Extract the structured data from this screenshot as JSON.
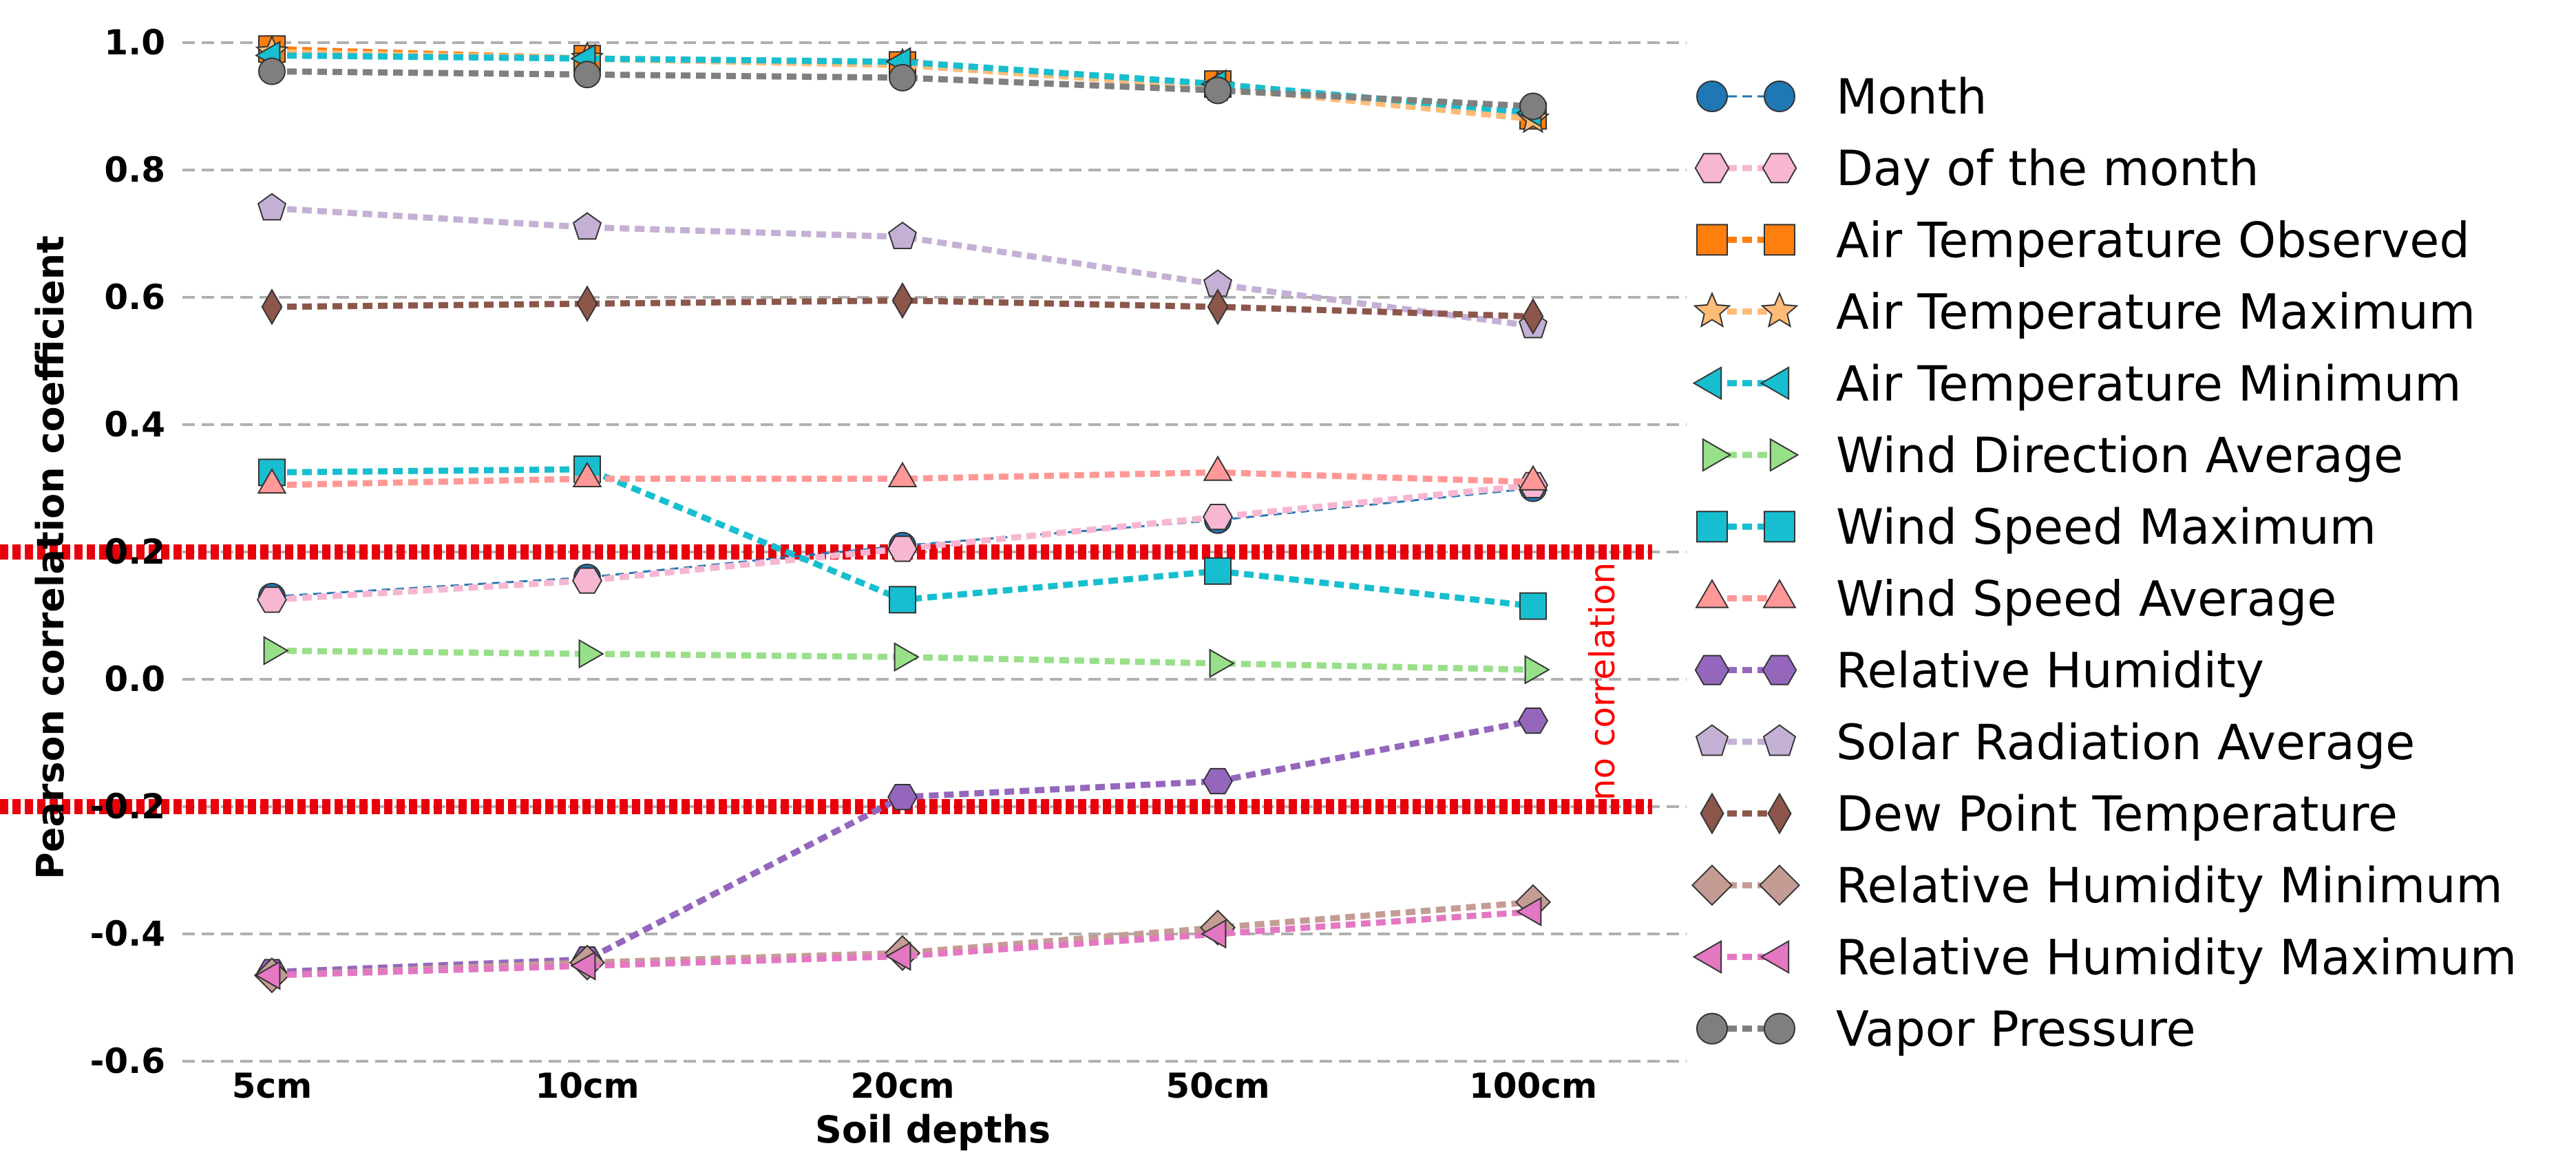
{
  "chart_data": {
    "type": "line",
    "title": "",
    "xlabel": "Soil depths",
    "ylabel": "Pearson correlation coefficient",
    "categories": [
      "5cm",
      "10cm",
      "20cm",
      "50cm",
      "100cm"
    ],
    "ylim": [
      -0.6,
      1.0
    ],
    "yticks": [
      -0.6,
      -0.4,
      -0.2,
      0.0,
      0.2,
      0.4,
      0.6,
      0.8,
      1.0
    ],
    "ytick_labels": [
      "-0.6",
      "-0.4",
      "-0.2",
      "0.0",
      "0.2",
      "0.4",
      "0.6",
      "0.8",
      "1.0"
    ],
    "grid": "horizontal dashed",
    "legend_position": "right",
    "reference_lines": [
      {
        "y": 0.2,
        "color": "#e8000b",
        "style": "dotted"
      },
      {
        "y": -0.2,
        "color": "#e8000b",
        "style": "dotted"
      }
    ],
    "annotation": {
      "text": "no correlation",
      "color": "#ff0000"
    },
    "series": [
      {
        "name": "Month",
        "color": "#1f77b4",
        "marker": "circle",
        "lw": 3,
        "values": [
          0.13,
          0.16,
          0.21,
          0.25,
          0.3
        ]
      },
      {
        "name": "Day of the month",
        "color": "#f7b6d2",
        "marker": "hexagon",
        "lw": 9,
        "values": [
          0.125,
          0.155,
          0.205,
          0.255,
          0.305
        ]
      },
      {
        "name": "Air Temperature Observed",
        "color": "#ff7f0e",
        "marker": "square",
        "lw": 9,
        "values": [
          0.99,
          0.975,
          0.965,
          0.935,
          0.885
        ]
      },
      {
        "name": "Air Temperature Maximum",
        "color": "#ffbb78",
        "marker": "star",
        "lw": 9,
        "values": [
          0.985,
          0.975,
          0.965,
          0.93,
          0.88
        ]
      },
      {
        "name": "Air Temperature Minimum",
        "color": "#17becf",
        "marker": "triangle-left",
        "lw": 9,
        "values": [
          0.98,
          0.975,
          0.97,
          0.935,
          0.89
        ]
      },
      {
        "name": "Wind Direction Average",
        "color": "#98df8a",
        "marker": "triangle-right",
        "lw": 9,
        "values": [
          0.045,
          0.04,
          0.035,
          0.025,
          0.015
        ]
      },
      {
        "name": "Wind Speed Maximum",
        "color": "#17becf",
        "marker": "square",
        "lw": 9,
        "values": [
          0.325,
          0.33,
          0.125,
          0.17,
          0.115
        ]
      },
      {
        "name": "Wind Speed Average",
        "color": "#ff9896",
        "marker": "triangle-up",
        "lw": 9,
        "values": [
          0.305,
          0.315,
          0.315,
          0.325,
          0.31
        ]
      },
      {
        "name": "Relative Humidity",
        "color": "#9467bd",
        "marker": "hexagon",
        "lw": 9,
        "values": [
          -0.46,
          -0.44,
          -0.185,
          -0.16,
          -0.065
        ]
      },
      {
        "name": "Solar Radiation Average",
        "color": "#c5b0d5",
        "marker": "pentagon",
        "lw": 9,
        "values": [
          0.74,
          0.71,
          0.695,
          0.62,
          0.555
        ]
      },
      {
        "name": "Dew Point Temperature",
        "color": "#8c564b",
        "marker": "thin-diamond",
        "lw": 9,
        "values": [
          0.585,
          0.59,
          0.595,
          0.585,
          0.57
        ]
      },
      {
        "name": "Relative Humidity Minimum",
        "color": "#c49c94",
        "marker": "diamond",
        "lw": 9,
        "values": [
          -0.465,
          -0.445,
          -0.43,
          -0.39,
          -0.35
        ]
      },
      {
        "name": "Relative Humidity Maximum",
        "color": "#e377c2",
        "marker": "triangle-left",
        "lw": 9,
        "values": [
          -0.465,
          -0.45,
          -0.435,
          -0.4,
          -0.365
        ]
      },
      {
        "name": "Vapor Pressure",
        "color": "#7f7f7f",
        "marker": "circle",
        "lw": 9,
        "values": [
          0.955,
          0.95,
          0.945,
          0.925,
          0.9
        ]
      }
    ]
  }
}
